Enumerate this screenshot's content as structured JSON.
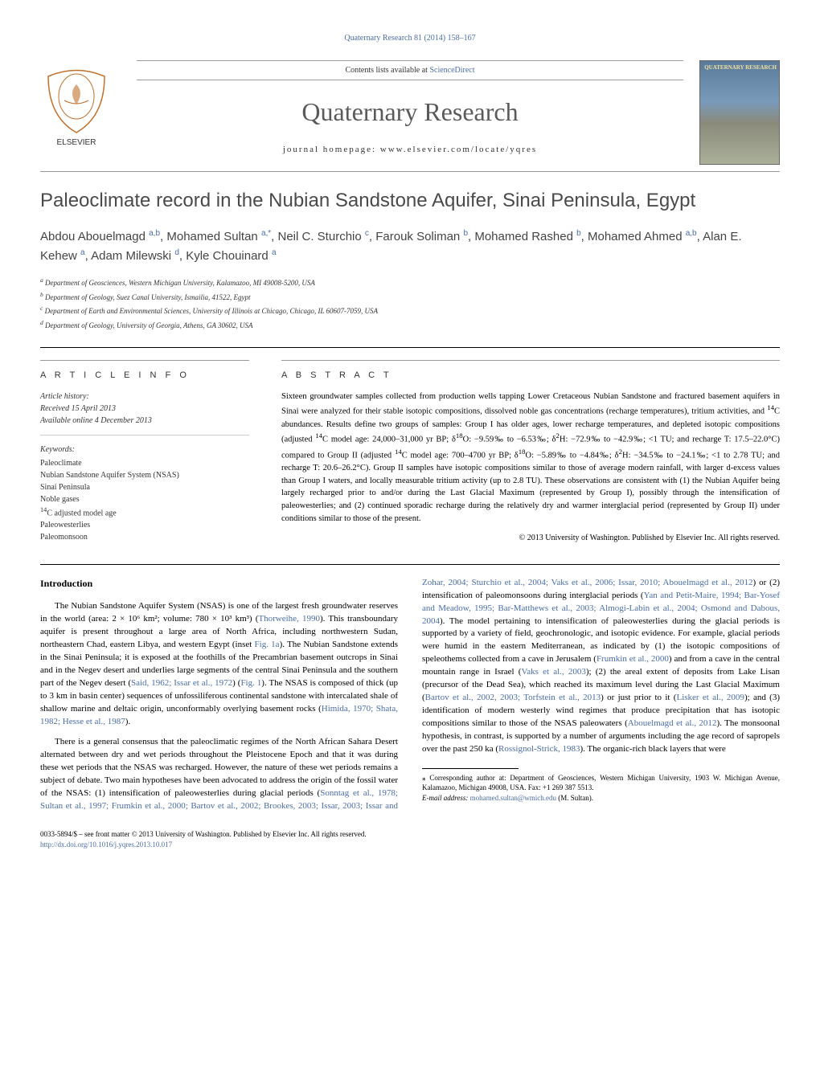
{
  "header": {
    "journal_ref": "Quaternary Research 81 (2014) 158–167",
    "contents_line_prefix": "Contents lists available at ",
    "contents_link": "ScienceDirect",
    "journal_title": "Quaternary Research",
    "homepage_prefix": "journal homepage: ",
    "homepage_url": "www.elsevier.com/locate/yqres",
    "cover_label": "QUATERNARY RESEARCH"
  },
  "article": {
    "title": "Paleoclimate record in the Nubian Sandstone Aquifer, Sinai Peninsula, Egypt",
    "authors_html": "Abdou Abouelmagd <sup>a,b</sup>, Mohamed Sultan <sup>a,*</sup>, Neil C. Sturchio <sup>c</sup>, Farouk Soliman <sup>b</sup>, Mohamed Rashed <sup>b</sup>, Mohamed Ahmed <sup>a,b</sup>, Alan E. Kehew <sup>a</sup>, Adam Milewski <sup>d</sup>, Kyle Chouinard <sup>a</sup>",
    "affiliations": {
      "a": "Department of Geosciences, Western Michigan University, Kalamazoo, MI 49008-5200, USA",
      "b": "Department of Geology, Suez Canal University, Ismailia, 41522, Egypt",
      "c": "Department of Earth and Environmental Sciences, University of Illinois at Chicago, Chicago, IL 60607-7059, USA",
      "d": "Department of Geology, University of Georgia, Athens, GA 30602, USA"
    }
  },
  "info": {
    "info_label": "A R T I C L E   I N F O",
    "history_label": "Article history:",
    "received": "Received 15 April 2013",
    "available": "Available online 4 December 2013",
    "keywords_label": "Keywords:",
    "keywords": [
      "Paleoclimate",
      "Nubian Sandstone Aquifer System (NSAS)",
      "Sinai Peninsula",
      "Noble gases",
      "14C adjusted model age",
      "Paleowesterlies",
      "Paleomonsoon"
    ]
  },
  "abstract": {
    "label": "A B S T R A C T",
    "text": "Sixteen groundwater samples collected from production wells tapping Lower Cretaceous Nubian Sandstone and fractured basement aquifers in Sinai were analyzed for their stable isotopic compositions, dissolved noble gas concentrations (recharge temperatures), tritium activities, and 14C abundances. Results define two groups of samples: Group I has older ages, lower recharge temperatures, and depleted isotopic compositions (adjusted 14C model age: 24,000–31,000 yr BP; δ18O: −9.59‰ to −6.53‰; δ2H: −72.9‰ to −42.9‰; <1 TU; and recharge T: 17.5–22.0°C) compared to Group II (adjusted 14C model age: 700–4700 yr BP; δ18O: −5.89‰ to −4.84‰; δ2H: −34.5‰ to −24.1‰; <1 to 2.78 TU; and recharge T: 20.6–26.2°C). Group II samples have isotopic compositions similar to those of average modern rainfall, with larger d-excess values than Group I waters, and locally measurable tritium activity (up to 2.8 TU). These observations are consistent with (1) the Nubian Aquifer being largely recharged prior to and/or during the Last Glacial Maximum (represented by Group I), possibly through the intensification of paleowesterlies; and (2) continued sporadic recharge during the relatively dry and warmer interglacial period (represented by Group II) under conditions similar to those of the present.",
    "copyright": "© 2013 University of Washington. Published by Elsevier Inc. All rights reserved."
  },
  "body": {
    "intro_heading": "Introduction",
    "para1": "The Nubian Sandstone Aquifer System (NSAS) is one of the largest fresh groundwater reserves in the world (area: 2 × 10⁶ km²; volume: 780 × 10³ km³) (Thorweihe, 1990). This transboundary aquifer is present throughout a large area of North Africa, including northwestern Sudan, northeastern Chad, eastern Libya, and western Egypt (inset Fig. 1a). The Nubian Sandstone extends in the Sinai Peninsula; it is exposed at the foothills of the Precambrian basement outcrops in Sinai and in the Negev desert and underlies large segments of the central Sinai Peninsula and the southern part of the Negev desert (Said, 1962; Issar et al., 1972) (Fig. 1). The NSAS is composed of thick (up to 3 km in basin center) sequences of unfossiliferous continental sandstone with intercalated shale of shallow marine and deltaic origin, unconformably overlying basement rocks (Himida, 1970; Shata, 1982; Hesse et al., 1987).",
    "para2": "There is a general consensus that the paleoclimatic regimes of the North African Sahara Desert alternated between dry and wet periods throughout the Pleistocene Epoch and that it was during these wet periods that the NSAS was recharged. However, the nature of these wet periods remains a subject of debate. Two main hypotheses have been advocated to address the origin of the fossil water of the NSAS: (1) intensification of paleowesterlies during glacial periods (Sonntag et al., 1978; Sultan et al., 1997; Frumkin et al., 2000; Bartov et al., 2002; Brookes, 2003; Issar, 2003; Issar and Zohar, 2004; Sturchio et al., 2004; Vaks et al., 2006; Issar, 2010; Abouelmagd et al., 2012) or (2) intensification of paleomonsoons during interglacial periods (Yan and Petit-Maire, 1994; Bar-Yosef and Meadow, 1995; Bar-Matthews et al., 2003; Almogi-Labin et al., 2004; Osmond and Dabous, 2004). The model pertaining to intensification of paleowesterlies during the glacial periods is supported by a variety of field, geochronologic, and isotopic evidence. For example, glacial periods were humid in the eastern Mediterranean, as indicated by (1) the isotopic compositions of speleothems collected from a cave in Jerusalem (Frumkin et al., 2000) and from a cave in the central mountain range in Israel (Vaks et al., 2003); (2) the areal extent of deposits from Lake Lisan (precursor of the Dead Sea), which reached its maximum level during the Last Glacial Maximum (Bartov et al., 2002, 2003; Torfstein et al., 2013) or just prior to it (Lisker et al., 2009); and (3) identification of modern westerly wind regimes that produce precipitation that has isotopic compositions similar to those of the NSAS paleowaters (Abouelmagd et al., 2012). The monsoonal hypothesis, in contrast, is supported by a number of arguments including the age record of sapropels over the past 250 ka (Rossignol-Strick, 1983). The organic-rich black layers that were"
  },
  "footnote": {
    "corr": "⁎ Corresponding author at: Department of Geosciences, Western Michigan University, 1903 W. Michigan Avenue, Kalamazoo, Michigan 49008, USA. Fax: +1 269 387 5513.",
    "email_label": "E-mail address: ",
    "email": "mohamed.sultan@wmich.edu",
    "email_suffix": " (M. Sultan)."
  },
  "footer": {
    "line1": "0033-5894/$ – see front matter © 2013 University of Washington. Published by Elsevier Inc. All rights reserved.",
    "doi": "http://dx.doi.org/10.1016/j.yqres.2013.10.017"
  },
  "colors": {
    "link": "#4a6da7",
    "text": "#000000",
    "gray": "#5a5a5a"
  }
}
